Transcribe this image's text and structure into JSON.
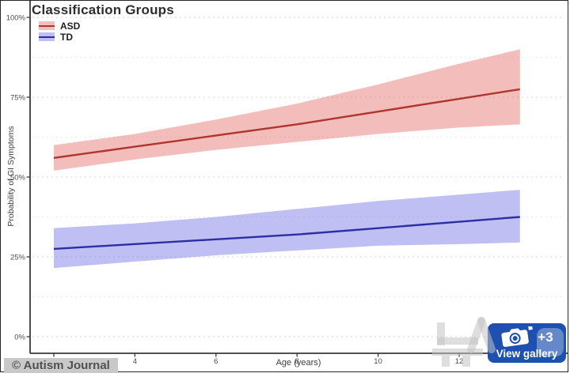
{
  "figure": {
    "credit": "© Autism Journal",
    "watermark": "뉴시스"
  },
  "gallery_button": {
    "label": "View gallery",
    "badge": "+3",
    "color": "#1d50b0"
  },
  "chart_data": {
    "type": "line",
    "title": "Classification Groups",
    "xlabel": "Age (years)",
    "ylabel": "Probability of GI Symptoms",
    "legend_position": "top-left",
    "grid": "horizontal dashed, major every 25%, minor every 12.5%",
    "xlim": [
      1.4,
      14.6
    ],
    "ylim": [
      0,
      100
    ],
    "x_ticks": [
      2,
      4,
      6,
      8,
      10,
      12
    ],
    "y_ticks_percent": [
      0,
      25,
      50,
      75,
      100
    ],
    "y_minor_percent": [
      12.5,
      37.5,
      62.5,
      87.5
    ],
    "x": [
      2,
      4,
      6,
      8,
      10,
      12,
      13.5
    ],
    "series": [
      {
        "name": "ASD",
        "line_color": "#b0352c",
        "band_color": "rgba(224,98,92,0.42)",
        "values": [
          56,
          59.5,
          63,
          66.5,
          70.5,
          74.5,
          77.5
        ],
        "lower": [
          52,
          55.5,
          58.5,
          61,
          63.5,
          65.5,
          66.5
        ],
        "upper": [
          60,
          63.5,
          68,
          73,
          79,
          85.5,
          90
        ]
      },
      {
        "name": "TD",
        "line_color": "#2b2fa3",
        "band_color": "rgba(112,112,228,0.45)",
        "values": [
          27.5,
          29,
          30.5,
          32,
          34,
          36,
          37.5
        ],
        "lower": [
          21.5,
          23.5,
          25.5,
          27,
          28.5,
          29,
          29.5
        ],
        "upper": [
          34,
          35.5,
          37.5,
          40,
          42.5,
          44.5,
          46
        ]
      }
    ]
  }
}
